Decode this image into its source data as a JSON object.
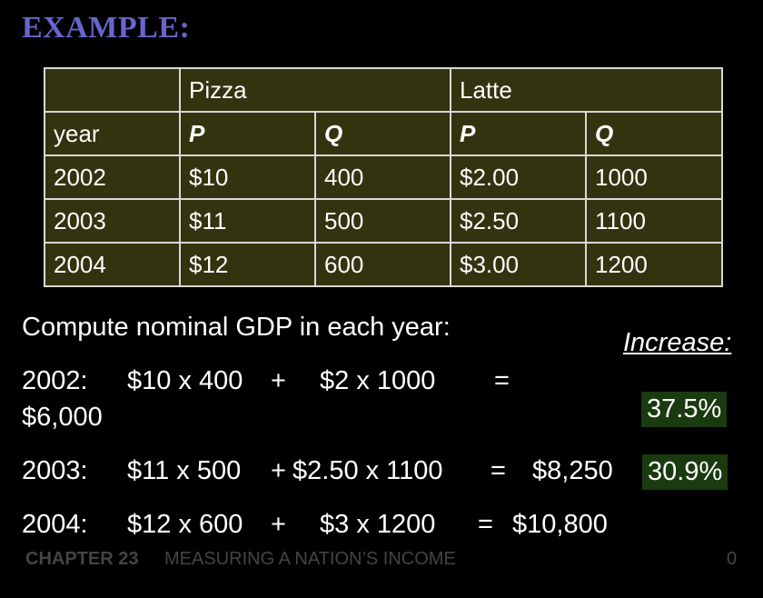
{
  "title": "EXAMPLE:",
  "table": {
    "group_headers": [
      "",
      "Pizza",
      "Latte"
    ],
    "sub_headers": [
      "year",
      "P",
      "Q",
      "P",
      "Q"
    ],
    "rows": [
      [
        "2002",
        "$10",
        "400",
        "$2.00",
        "1000"
      ],
      [
        "2003",
        "$11",
        "500",
        "$2.50",
        "1100"
      ],
      [
        "2004",
        "$12",
        "600",
        "$3.00",
        "1200"
      ]
    ]
  },
  "prompt": "Compute nominal GDP in each year:",
  "increase_header": "Increase:",
  "lines": [
    {
      "year": "2002:",
      "a": "$10 x 400",
      "op": "+",
      "b": "$2 x 1000",
      "eq": "=",
      "result": "$6,000"
    },
    {
      "year": "2003:",
      "a": "$11 x 500",
      "op": "+",
      "b": "$2.50 x 1100",
      "eq": "=",
      "result": "$8,250"
    },
    {
      "year": "2004:",
      "a": "$12 x 600",
      "op": "+",
      "b": "$3 x 1200",
      "eq": "=",
      "result": "$10,800"
    }
  ],
  "increases": [
    "37.5%",
    "30.9%"
  ],
  "footer": {
    "chapter": "CHAPTER 23",
    "chapter_title": "MEASURING A NATION’S INCOME",
    "slide_number": "0"
  },
  "colors": {
    "title": "#6666cc",
    "table_bg": "#333310",
    "increase_bg": "#1a3a10",
    "footer": "#444444"
  }
}
